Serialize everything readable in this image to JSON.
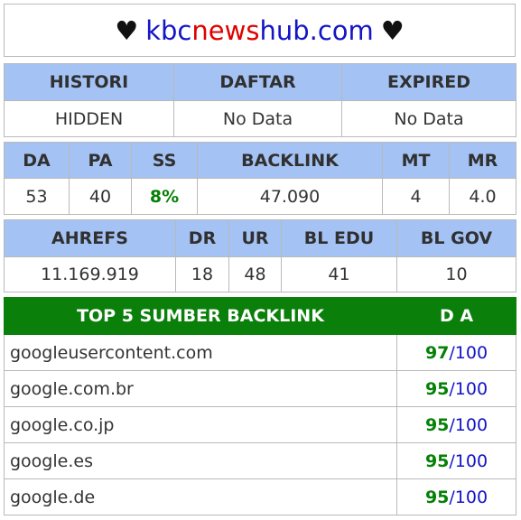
{
  "title": {
    "heart": "♥",
    "parts": [
      "kbc",
      "news",
      "hub",
      ".com"
    ],
    "colors": {
      "blue": "#1414c8",
      "red": "#e00000"
    }
  },
  "table1": {
    "headers": [
      "HISTORI",
      "DAFTAR",
      "EXPIRED"
    ],
    "values": [
      "HIDDEN",
      "No Data",
      "No Data"
    ]
  },
  "table2": {
    "headers": [
      "DA",
      "PA",
      "SS",
      "BACKLINK",
      "MT",
      "MR"
    ],
    "values": [
      "53",
      "40",
      "8%",
      "47.090",
      "4",
      "4.0"
    ]
  },
  "table3": {
    "headers": [
      "AHREFS",
      "DR",
      "UR",
      "BL EDU",
      "BL GOV"
    ],
    "values": [
      "11.169.919",
      "18",
      "48",
      "41",
      "10"
    ]
  },
  "top5": {
    "header_left": "TOP 5 SUMBER BACKLINK",
    "header_right": "D A",
    "rows": [
      {
        "domain": "googleusercontent.com",
        "score": "97",
        "max": "/100"
      },
      {
        "domain": "google.com.br",
        "score": "95",
        "max": "/100"
      },
      {
        "domain": "google.co.jp",
        "score": "95",
        "max": "/100"
      },
      {
        "domain": "google.es",
        "score": "95",
        "max": "/100"
      },
      {
        "domain": "google.de",
        "score": "95",
        "max": "/100"
      }
    ]
  }
}
